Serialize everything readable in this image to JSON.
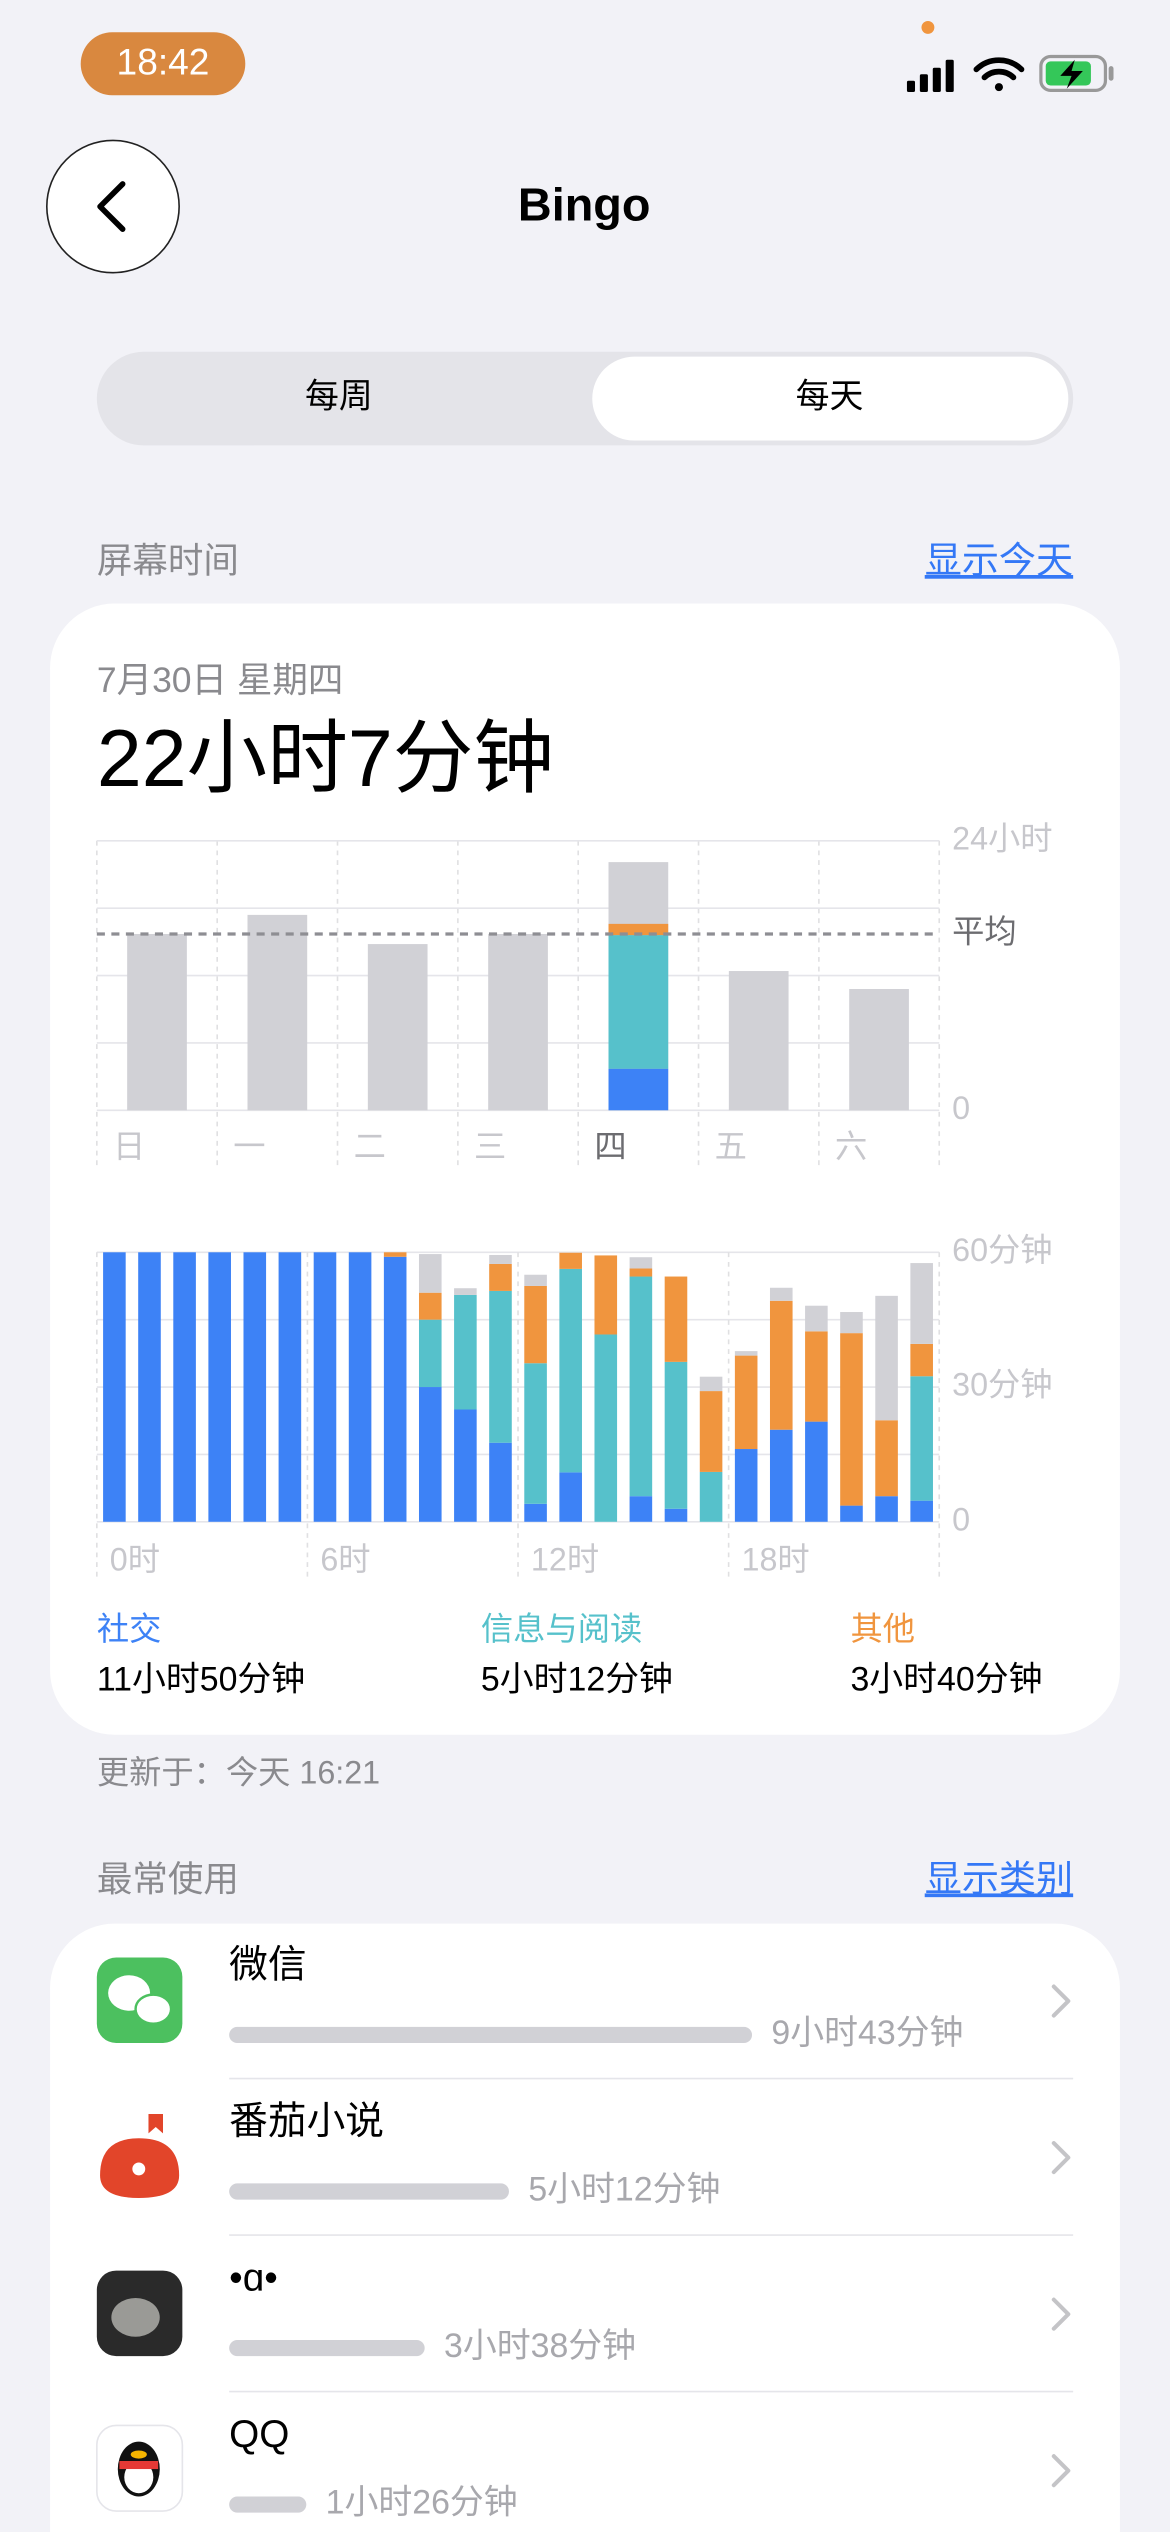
{
  "status_bar": {
    "time": "18:42"
  },
  "nav": {
    "title": "Bingo"
  },
  "segments": [
    "每周",
    "每天"
  ],
  "screen_time": {
    "header": "屏幕时间",
    "link": "显示今天",
    "date": "7月30日 星期四",
    "total": "22小时7分钟",
    "updated": "更新于：今天 16:21"
  },
  "weekly_chart": {
    "type": "bar",
    "categories": [
      "日",
      "一",
      "二",
      "三",
      "四",
      "五",
      "六"
    ],
    "totals": [
      15.7,
      17.4,
      14.8,
      15.7,
      22.1,
      12.4,
      10.8
    ],
    "total_color": "#d1d1d6",
    "series": [
      {
        "color": "#3d82f6",
        "values": [
          null,
          null,
          null,
          null,
          3.7,
          null,
          null
        ]
      },
      {
        "color": "#56c1cb",
        "values": [
          null,
          null,
          null,
          null,
          11.9,
          null,
          null
        ]
      },
      {
        "color": "#f0953e",
        "values": [
          null,
          null,
          null,
          null,
          1.0,
          null,
          null
        ]
      }
    ],
    "ylim": [
      0,
      24
    ],
    "yticks": [
      {
        "value": 0,
        "label": "0"
      },
      {
        "value": 24,
        "label": "24小时"
      }
    ],
    "grid_values": [
      6,
      12,
      18
    ],
    "average": {
      "value": 15.7,
      "label": "平均"
    }
  },
  "hourly_chart": {
    "type": "stacked_bar",
    "categories": [
      "0时",
      null,
      null,
      null,
      null,
      null,
      "6时",
      null,
      null,
      null,
      null,
      null,
      "12时",
      null,
      null,
      null,
      null,
      null,
      "18时",
      null,
      null,
      null,
      null,
      null
    ],
    "series": [
      {
        "name": "社交",
        "total": "11小时50分钟",
        "color": "#3d82f6",
        "values": [
          60,
          60,
          60,
          60,
          60,
          60,
          60,
          60,
          59,
          30,
          25,
          17.6,
          4,
          11,
          0,
          5.7,
          2.9,
          0,
          16.2,
          20.5,
          22.3,
          3.6,
          5.7,
          4.7
        ]
      },
      {
        "name": "信息与阅读",
        "total": "5小时12分钟",
        "color": "#56c1cb",
        "values": [
          0,
          0,
          0,
          0,
          0,
          0,
          0,
          0,
          0,
          15,
          25.5,
          33.8,
          31.3,
          45.3,
          41.7,
          48.9,
          32.7,
          11.1,
          0,
          0,
          0,
          0,
          0,
          27.7
        ]
      },
      {
        "name": "其他",
        "total": "3小时40分钟",
        "color": "#f0953e",
        "values": [
          0,
          0,
          0,
          0,
          0,
          0,
          0,
          0,
          1,
          6,
          0,
          6,
          17.2,
          3.6,
          17.6,
          1.8,
          19,
          18,
          20.8,
          28.7,
          20.1,
          38.4,
          16.9,
          7.2
        ]
      },
      {
        "color": "#d1d1d6",
        "values": [
          0,
          0,
          0,
          0,
          0,
          0,
          0,
          0,
          0,
          8.6,
          1.5,
          2,
          2.5,
          0,
          0,
          2.5,
          0,
          3.2,
          1,
          2.9,
          5.7,
          4.7,
          27.7,
          18
        ]
      }
    ],
    "ylim": [
      0,
      60
    ],
    "yticks": [
      {
        "value": 0,
        "label": "0"
      },
      {
        "value": 30,
        "label": "30分钟"
      },
      {
        "value": 60,
        "label": "60分钟"
      }
    ],
    "grid_values": [
      15,
      45
    ]
  },
  "most_used": {
    "header": "最常使用",
    "link": "显示类别",
    "apps": [
      {
        "name": "微信",
        "usage_minutes": 583,
        "usage_label": "9小时43分钟"
      },
      {
        "name": "番茄小说",
        "usage_minutes": 312,
        "usage_label": "5小时12分钟"
      },
      {
        "name": "•ɑ•",
        "usage_minutes": 218,
        "usage_label": "3小时38分钟"
      },
      {
        "name": "QQ",
        "usage_minutes": 86,
        "usage_label": "1小时26分钟"
      }
    ]
  }
}
